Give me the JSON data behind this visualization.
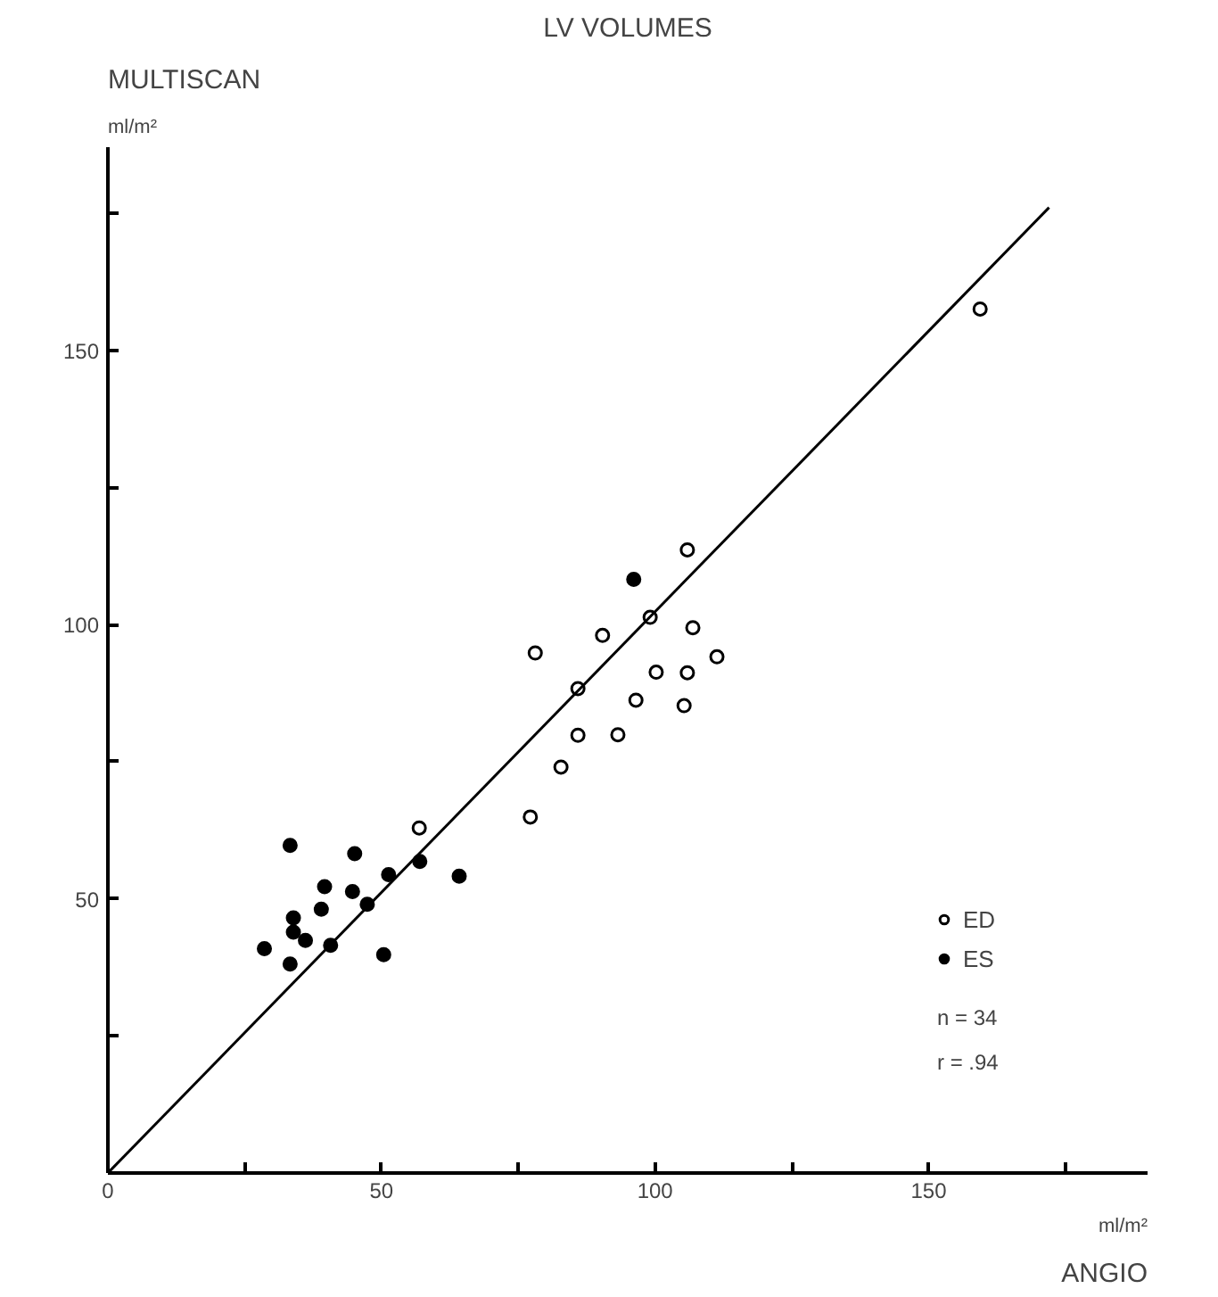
{
  "chart_data": {
    "type": "scatter",
    "title": "LV VOLUMES",
    "xlabel": "ANGIO",
    "ylabel": "MULTISCAN",
    "xlim": [
      0,
      190
    ],
    "ylim": [
      0,
      187
    ],
    "xticks": [
      0,
      {
        "value": 25,
        "label": null
      },
      50,
      {
        "value": 75,
        "label": null
      },
      100,
      {
        "value": 125,
        "label": null
      },
      150,
      {
        "value": 175,
        "label": null
      }
    ],
    "yticks": [
      {
        "value": 25,
        "label": null
      },
      50,
      {
        "value": 75,
        "label": null
      },
      100,
      {
        "value": 125,
        "label": null
      },
      150,
      {
        "value": 175,
        "label": null
      }
    ],
    "grid": false,
    "legend": "bottom right",
    "annotations": [
      "ml/m²",
      "ml/m²",
      "n = 34",
      "r = .94"
    ],
    "series": [
      {
        "name": "ED",
        "marker": "circle",
        "color": "#ffffff",
        "x": [
          56.9,
          105.9,
          99.1,
          106.9,
          90.4,
          78.1,
          111.3,
          100.2,
          105.9,
          85.9,
          96.5,
          105.3,
          85.9,
          93.2,
          82.8,
          77.2,
          159.4
        ],
        "values": [
          62.9,
          113.6,
          101.3,
          99.4,
          98.0,
          94.8,
          94.1,
          91.3,
          91.2,
          88.3,
          86.2,
          85.2,
          79.8,
          79.9,
          74.0,
          64.9,
          157.5
        ]
      },
      {
        "name": "ES",
        "marker": "circle",
        "color": "#000000",
        "x": [
          33.3,
          45.1,
          39.6,
          51.3,
          57.0,
          64.2,
          44.7,
          39.0,
          47.4,
          33.9,
          33.9,
          36.1,
          40.7,
          28.6,
          33.3,
          50.4,
          96.1
        ],
        "values": [
          59.7,
          58.2,
          52.2,
          54.4,
          56.8,
          54.1,
          51.3,
          48.1,
          49.0,
          46.5,
          43.9,
          42.4,
          41.5,
          40.9,
          38.1,
          39.8,
          108.2
        ]
      },
      {
        "type": "line",
        "color": "#000000",
        "x": [
          0,
          172
        ],
        "values": [
          0,
          176
        ]
      }
    ]
  }
}
